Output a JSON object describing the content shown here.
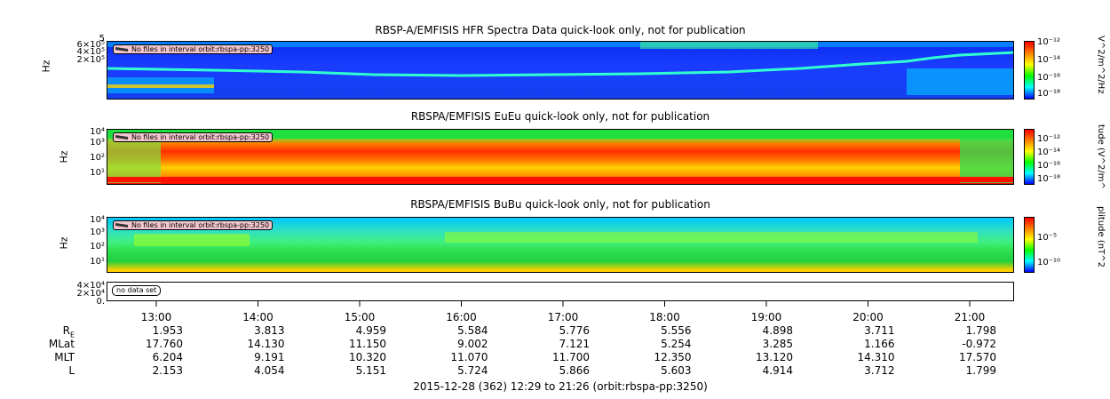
{
  "panels": [
    {
      "title": "RBSP-A/EMFISIS  HFR Spectra Data quick-look only, not for publication",
      "ylabel": "Hz",
      "yticks": [
        "6×10⁵",
        "4×10⁵",
        "2×10⁵"
      ],
      "ytop": "5",
      "nofile": "No files in interval orbit:rbspa-pp:3250",
      "cbar_title": "V^2/m^2/Hz",
      "cbar_labels": [
        "10⁻¹²",
        "10⁻¹⁴",
        "10⁻¹⁶",
        "10⁻¹⁸"
      ]
    },
    {
      "title": "RBSPA/EMFISIS  EuEu quick-look only, not for publication",
      "ylabel": "Hz",
      "yticks": [
        "10⁴",
        "10³",
        "10²",
        "10¹"
      ],
      "nofile": "No files in interval orbit:rbspa-pp:3250",
      "cbar_title": "tude (V^2/m^",
      "cbar_labels": [
        "10⁻¹²",
        "10⁻¹⁴",
        "10⁻¹⁶",
        "10⁻¹⁸"
      ]
    },
    {
      "title": "RBSPA/EMFISIS  BuBu quick-look only, not for publication",
      "ylabel": "Hz",
      "yticks": [
        "10⁴",
        "10³",
        "10²",
        "10¹"
      ],
      "nofile": "No files in interval orbit:rbspa-pp:3250",
      "cbar_title": "plitude (nT^2",
      "cbar_labels": [
        "10⁻⁵",
        "10⁻¹⁰"
      ]
    },
    {
      "yticks": [
        "4×10⁴",
        "2×10⁴",
        "0."
      ],
      "nodata": "no data set"
    }
  ],
  "colors": {
    "spectrum_low": "#0000ff",
    "spectrum_mid": "#00ff00",
    "spectrum_high": "#ff0000",
    "bg_blue": "#1a3cff",
    "bg_green": "#20e040"
  },
  "chart_data": {
    "type": "heatmap",
    "times": [
      "13:00",
      "14:00",
      "15:00",
      "16:00",
      "17:00",
      "18:00",
      "19:00",
      "20:00",
      "21:00"
    ],
    "ephemeris": {
      "labels": [
        "R_E",
        "MLat",
        "MLT",
        "L"
      ],
      "R_E": [
        "1.953",
        "3.813",
        "4.959",
        "5.584",
        "5.776",
        "5.556",
        "4.898",
        "3.711",
        "1.798"
      ],
      "MLat": [
        "17.760",
        "14.130",
        "11.150",
        "9.002",
        "7.121",
        "5.254",
        "3.285",
        "1.166",
        "-0.972"
      ],
      "MLT": [
        "6.204",
        "9.191",
        "10.320",
        "11.070",
        "11.700",
        "12.350",
        "13.120",
        "14.310",
        "17.570"
      ],
      "L": [
        "2.153",
        "4.054",
        "5.151",
        "5.724",
        "5.866",
        "5.603",
        "4.914",
        "3.712",
        "1.799"
      ]
    },
    "footer": "2015-12-28 (362) 12:29 to 21:26 (orbit:rbspa-pp:3250)"
  }
}
